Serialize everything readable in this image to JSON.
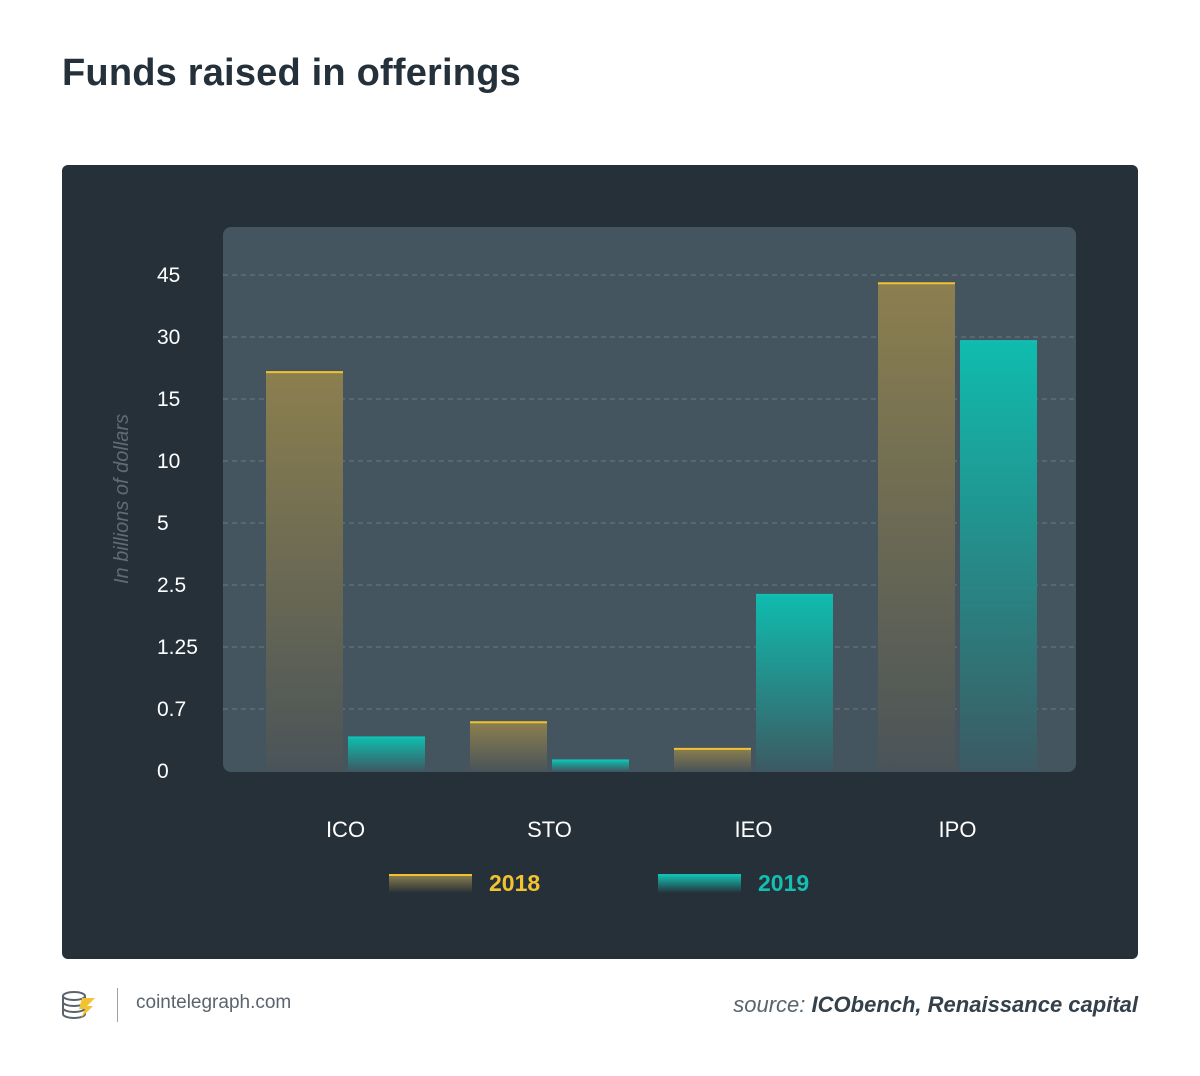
{
  "title": "Funds raised in offerings",
  "footer": {
    "site": "cointelegraph.com",
    "source_prefix": "source:",
    "source_names": "ICObench, Renaissance capital"
  },
  "colors": {
    "panel": "#263038",
    "plot": "#45555f",
    "series_2018": "#f2c230",
    "series_2019": "#13bfb2",
    "series_2018_bar": "#8c7f4f",
    "series_2019_bar": "#0fb3a8"
  },
  "chart_data": {
    "type": "bar",
    "title": "",
    "xlabel": "",
    "ylabel": "In billions of dollars",
    "categories": [
      "ICO",
      "STO",
      "IEO",
      "IPO"
    ],
    "y_ticks": [
      0,
      0.7,
      1.25,
      2.5,
      5,
      10,
      15,
      30,
      45
    ],
    "y_tick_labels": [
      "0",
      "0.7",
      "1.25",
      "2.5",
      "5",
      "10",
      "15",
      "30",
      "45"
    ],
    "scale": "non-linear (evenly spaced ticks)",
    "grid": true,
    "legend_position": "bottom",
    "series": [
      {
        "name": "2018",
        "values": [
          21.5,
          0.55,
          0.25,
          43.0
        ]
      },
      {
        "name": "2019",
        "values": [
          0.38,
          0.12,
          2.3,
          29.0
        ]
      }
    ]
  }
}
